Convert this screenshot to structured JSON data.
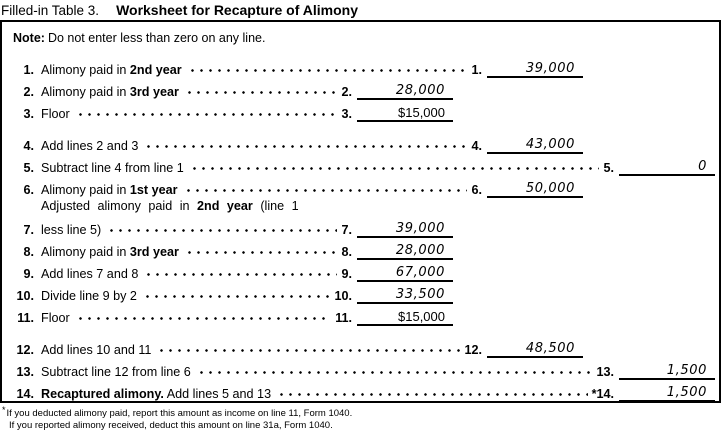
{
  "title": {
    "prefix": "Filled-in Table 3.",
    "main": "Worksheet for Recapture of Alimony"
  },
  "note": {
    "label": "Note:",
    "text": "Do not enter less than zero on any line."
  },
  "colors": {
    "text": "#000000",
    "background": "#ffffff",
    "rule": "#000000"
  },
  "rows": [
    {
      "num": "1.",
      "pre": "Alimony paid in ",
      "bold": "2nd year",
      "post": "",
      "ans_num": "1.",
      "value": "39,000",
      "col": "B",
      "value_style": "handwritten",
      "group_gap": false,
      "two_line": false,
      "label_line2": ""
    },
    {
      "num": "2.",
      "pre": "Alimony paid in ",
      "bold": "3rd year",
      "post": "",
      "ans_num": "2.",
      "value": "28,000",
      "col": "A",
      "value_style": "handwritten",
      "group_gap": false,
      "two_line": false,
      "label_line2": ""
    },
    {
      "num": "3.",
      "pre": "Floor",
      "bold": "",
      "post": "",
      "ans_num": "3.",
      "value": "$15,000",
      "col": "A",
      "value_style": "printed",
      "group_gap": false,
      "two_line": false,
      "label_line2": ""
    },
    {
      "num": "4.",
      "pre": "Add lines 2 and 3",
      "bold": "",
      "post": "",
      "ans_num": "4.",
      "value": "43,000",
      "col": "B",
      "value_style": "handwritten",
      "group_gap": true,
      "two_line": false,
      "label_line2": ""
    },
    {
      "num": "5.",
      "pre": "Subtract line 4 from line 1",
      "bold": "",
      "post": "",
      "ans_num": "5.",
      "value": "0",
      "col": "C",
      "value_style": "handwritten",
      "group_gap": false,
      "two_line": false,
      "label_line2": ""
    },
    {
      "num": "6.",
      "pre": "Alimony paid in ",
      "bold": "1st year",
      "post": "",
      "ans_num": "6.",
      "value": "50,000",
      "col": "B",
      "value_style": "handwritten",
      "group_gap": false,
      "two_line": false,
      "label_line2": ""
    },
    {
      "num": "7.",
      "pre": "Adjusted alimony paid in ",
      "bold": "2nd year",
      "post": " (line 1",
      "ans_num": "7.",
      "value": "39,000",
      "col": "A",
      "value_style": "handwritten",
      "group_gap": false,
      "two_line": true,
      "label_line2": "less line 5)"
    },
    {
      "num": "8.",
      "pre": "Alimony paid in ",
      "bold": "3rd year",
      "post": "",
      "ans_num": "8.",
      "value": "28,000",
      "col": "A",
      "value_style": "handwritten",
      "group_gap": false,
      "two_line": false,
      "label_line2": ""
    },
    {
      "num": "9.",
      "pre": "Add lines 7 and 8",
      "bold": "",
      "post": "",
      "ans_num": "9.",
      "value": "67,000",
      "col": "A",
      "value_style": "handwritten",
      "group_gap": false,
      "two_line": false,
      "label_line2": ""
    },
    {
      "num": "10.",
      "pre": "Divide line 9 by 2",
      "bold": "",
      "post": "",
      "ans_num": "10.",
      "value": "33,500",
      "col": "A",
      "value_style": "handwritten",
      "group_gap": false,
      "two_line": false,
      "label_line2": ""
    },
    {
      "num": "11.",
      "pre": "Floor",
      "bold": "",
      "post": "",
      "ans_num": "11.",
      "value": "$15,000",
      "col": "A",
      "value_style": "printed",
      "group_gap": false,
      "two_line": false,
      "label_line2": ""
    },
    {
      "num": "12.",
      "pre": "Add lines 10 and 11",
      "bold": "",
      "post": "",
      "ans_num": "12.",
      "value": "48,500",
      "col": "B",
      "value_style": "handwritten",
      "group_gap": true,
      "two_line": false,
      "label_line2": ""
    },
    {
      "num": "13.",
      "pre": "Subtract line 12 from line 6",
      "bold": "",
      "post": "",
      "ans_num": "13.",
      "value": "1,500",
      "col": "C",
      "value_style": "handwritten",
      "group_gap": false,
      "two_line": false,
      "label_line2": ""
    },
    {
      "num": "14.",
      "pre": "",
      "bold": "Recaptured alimony.",
      "post": " Add lines 5 and 13",
      "ans_num": "*14.",
      "value": "1,500",
      "col": "C",
      "value_style": "handwritten",
      "group_gap": false,
      "two_line": false,
      "label_line2": ""
    }
  ],
  "footnotes": [
    {
      "marker": "*",
      "text": "If you deducted alimony paid, report this amount as income on line 11, Form 1040."
    },
    {
      "marker": "",
      "text": "If you reported alimony received, deduct this amount on line 31a, Form 1040."
    }
  ]
}
